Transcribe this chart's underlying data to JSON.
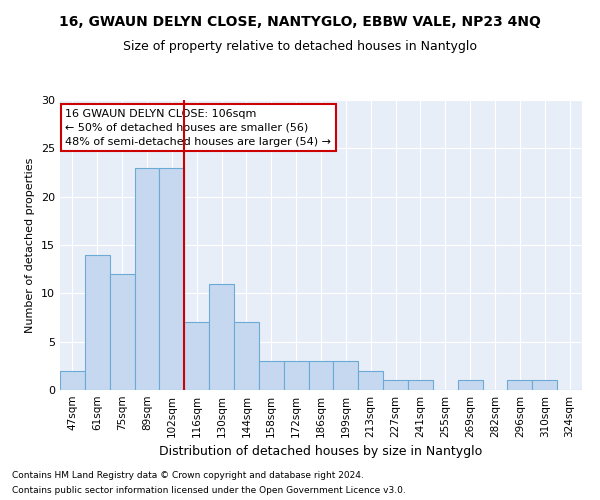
{
  "title": "16, GWAUN DELYN CLOSE, NANTYGLO, EBBW VALE, NP23 4NQ",
  "subtitle": "Size of property relative to detached houses in Nantyglo",
  "xlabel": "Distribution of detached houses by size in Nantyglo",
  "ylabel": "Number of detached properties",
  "categories": [
    "47sqm",
    "61sqm",
    "75sqm",
    "89sqm",
    "102sqm",
    "116sqm",
    "130sqm",
    "144sqm",
    "158sqm",
    "172sqm",
    "186sqm",
    "199sqm",
    "213sqm",
    "227sqm",
    "241sqm",
    "255sqm",
    "269sqm",
    "282sqm",
    "296sqm",
    "310sqm",
    "324sqm"
  ],
  "values": [
    2,
    14,
    12,
    23,
    23,
    7,
    11,
    7,
    3,
    3,
    3,
    3,
    2,
    1,
    1,
    0,
    1,
    0,
    1,
    1,
    0
  ],
  "bar_color": "#c5d8f0",
  "bar_edge_color": "#6aaad4",
  "red_line_index": 4.5,
  "annotation_text": "16 GWAUN DELYN CLOSE: 106sqm\n← 50% of detached houses are smaller (56)\n48% of semi-detached houses are larger (54) →",
  "annotation_box_color": "#ffffff",
  "annotation_box_edge": "#cc0000",
  "red_line_color": "#cc0000",
  "ylim": [
    0,
    30
  ],
  "yticks": [
    0,
    5,
    10,
    15,
    20,
    25,
    30
  ],
  "background_color": "#e8eef8",
  "footer_line1": "Contains HM Land Registry data © Crown copyright and database right 2024.",
  "footer_line2": "Contains public sector information licensed under the Open Government Licence v3.0.",
  "title_fontsize": 10,
  "subtitle_fontsize": 9,
  "ylabel_fontsize": 8,
  "xlabel_fontsize": 9,
  "annotation_fontsize": 8,
  "footer_fontsize": 6.5
}
